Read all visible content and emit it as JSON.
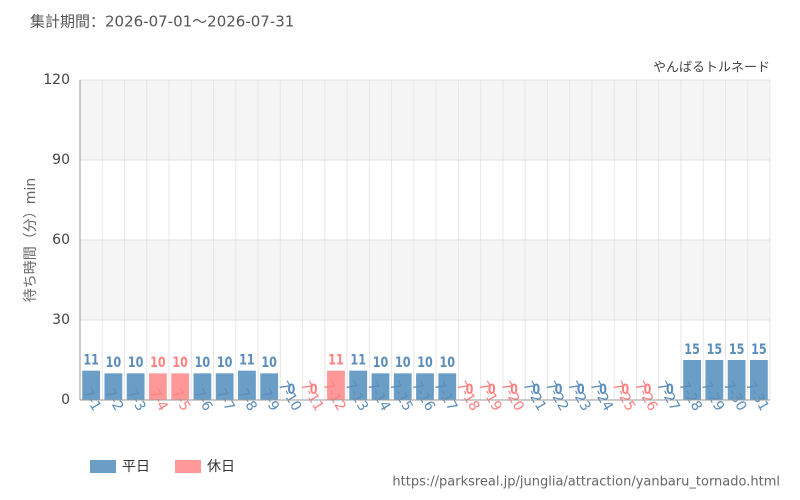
{
  "chart_data": {
    "type": "bar",
    "title": "集計期間：2026-07-01～2026-07-31",
    "subtitle": "やんばるトルネード",
    "y_label": "待ち時間（分）min",
    "source": "https://parksreal.jp/junglia/attraction/yanbaru_tornado.html",
    "categories": [
      "7-1",
      "7-2",
      "7-3",
      "7-4",
      "7-5",
      "7-6",
      "7-7",
      "7-8",
      "7-9",
      "7-10",
      "7-11",
      "7-12",
      "7-13",
      "7-14",
      "7-15",
      "7-16",
      "7-17",
      "7-18",
      "7-19",
      "7-20",
      "7-21",
      "7-22",
      "7-23",
      "7-24",
      "7-25",
      "7-26",
      "7-27",
      "7-28",
      "7-29",
      "7-30",
      "7-31"
    ],
    "series": [
      {
        "name": "平日",
        "color": "#6a9ec7",
        "label_color": "#5b8dba",
        "values": [
          11,
          10,
          10,
          null,
          null,
          10,
          10,
          11,
          10,
          0,
          null,
          null,
          11,
          10,
          10,
          10,
          10,
          null,
          null,
          null,
          0,
          0,
          0,
          0,
          null,
          null,
          0,
          15,
          15,
          15,
          15
        ]
      },
      {
        "name": "休日",
        "color": "#ff9999",
        "label_color": "#ff8080",
        "values": [
          null,
          null,
          null,
          10,
          10,
          null,
          null,
          null,
          null,
          null,
          0,
          11,
          null,
          null,
          null,
          null,
          null,
          0,
          0,
          0,
          null,
          null,
          null,
          null,
          0,
          0,
          null,
          null,
          null,
          null,
          null
        ]
      }
    ],
    "ylim": [
      0,
      120
    ],
    "yticks": [
      0,
      30,
      60,
      90,
      120
    ],
    "grid": true
  }
}
